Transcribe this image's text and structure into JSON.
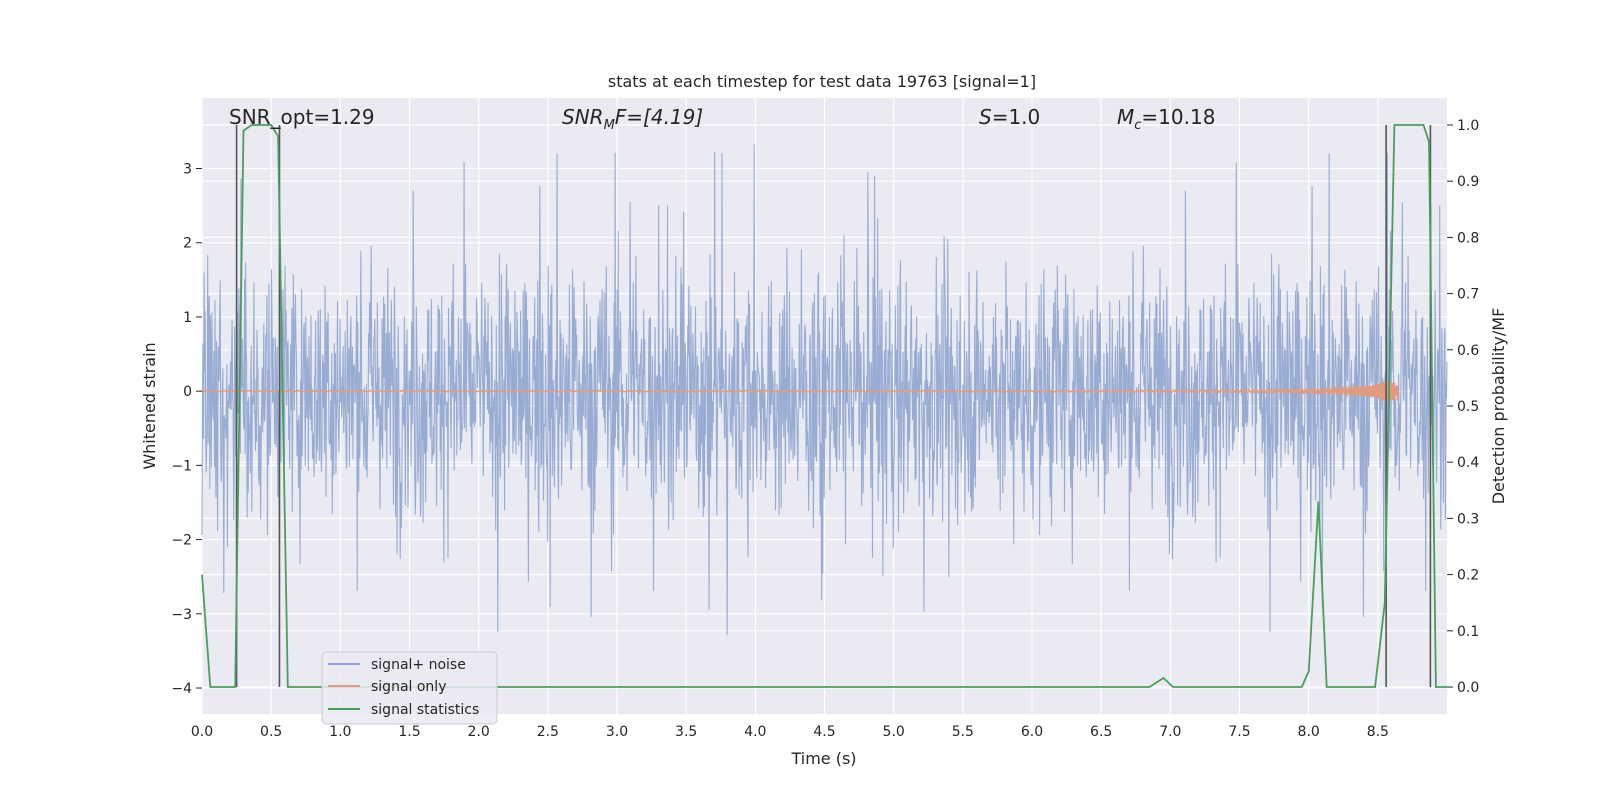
{
  "chart_data": {
    "type": "line",
    "title": "stats at each timestep for test data 19763 [signal=1]",
    "xlabel": "Time (s)",
    "ylabel": "Whitened strain",
    "y2label": "Detection probability/MF",
    "xlim": [
      0.0,
      9.0
    ],
    "ylim": [
      -4.35,
      3.95
    ],
    "y2lim": [
      -0.048,
      1.048
    ],
    "xticks": [
      "0.0",
      "0.5",
      "1.0",
      "1.5",
      "2.0",
      "2.5",
      "3.0",
      "3.5",
      "4.0",
      "4.5",
      "5.0",
      "5.5",
      "6.0",
      "6.5",
      "7.0",
      "7.5",
      "8.0",
      "8.5"
    ],
    "yticks": [
      "3",
      "2",
      "1",
      "0",
      "−1",
      "−2",
      "−3",
      "−4"
    ],
    "y2ticks": [
      "1.0",
      "0.9",
      "0.8",
      "0.7",
      "0.6",
      "0.5",
      "0.4",
      "0.3",
      "0.2",
      "0.1",
      "0.0"
    ],
    "grid": true,
    "legend_position": "lower-left",
    "annotations": {
      "snr_opt": "SNR_opt=1.29",
      "snr_mf_base": "SNR",
      "snr_mf_sub": "M",
      "snr_mf_rest": "F=[4.19]",
      "s_base": "S",
      "s_rest": "=1.0",
      "mc_base": "M",
      "mc_sub": "c",
      "mc_rest": "=10.18"
    },
    "series": [
      {
        "name": "signal+ noise",
        "color": "#8fa5cf",
        "description_of_values": "whitened noise, roughly within ±1.6 with spikes to about ±3.3",
        "amplitude": 1.6
      },
      {
        "name": "signal only",
        "color": "#e29a7e",
        "description_of_values": "chirp rising in amplitude near the end",
        "chirp_end_time": 8.65,
        "chirp_peak_amplitude": 0.13
      },
      {
        "name": "signal statistics",
        "color": "#4a9e5c",
        "axis": "right",
        "x": [
          0.0,
          0.06,
          0.24,
          0.3,
          0.36,
          0.5,
          0.55,
          0.62,
          0.65,
          6.85,
          6.95,
          7.02,
          7.95,
          8.0,
          8.07,
          8.13,
          8.48,
          8.55,
          8.62,
          8.75,
          8.83,
          8.87,
          8.92,
          9.0
        ],
        "y": [
          0.2,
          0.0,
          0.0,
          0.99,
          1.0,
          1.0,
          0.98,
          0.0,
          0.0,
          0.0,
          0.016,
          0.0,
          0.0,
          0.028,
          0.33,
          0.0,
          0.0,
          0.15,
          1.0,
          1.0,
          1.0,
          0.97,
          0.0,
          0.0
        ]
      }
    ],
    "vertical_lines": [
      {
        "x": 0.25,
        "color": "#555555"
      },
      {
        "x": 0.56,
        "color": "#555555"
      },
      {
        "x": 8.56,
        "color": "#555555"
      },
      {
        "x": 8.88,
        "color": "#555555"
      }
    ]
  }
}
